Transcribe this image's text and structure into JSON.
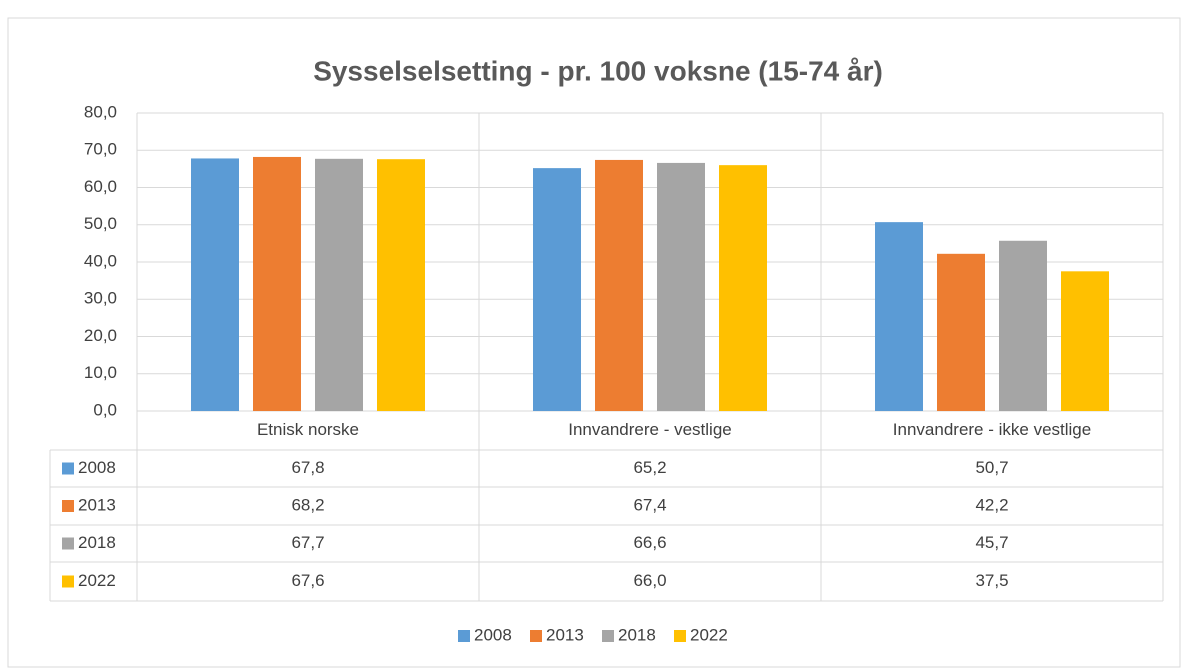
{
  "chart_data": {
    "type": "bar",
    "title": "Sysselselsetting - pr. 100 voksne (15-74 år)",
    "categories": [
      "Etnisk norske",
      "Innvandrere - vestlige",
      "Innvandrere - ikke vestlige"
    ],
    "series": [
      {
        "name": "2008",
        "color": "#5b9bd5",
        "values": [
          67.8,
          65.2,
          50.7
        ],
        "value_labels": [
          "67,8",
          "65,2",
          "50,7"
        ]
      },
      {
        "name": "2013",
        "color": "#ed7d31",
        "values": [
          68.2,
          67.4,
          42.2
        ],
        "value_labels": [
          "68,2",
          "67,4",
          "42,2"
        ]
      },
      {
        "name": "2018",
        "color": "#a5a5a5",
        "values": [
          67.7,
          66.6,
          45.7
        ],
        "value_labels": [
          "67,7",
          "66,6",
          "45,7"
        ]
      },
      {
        "name": "2022",
        "color": "#ffc000",
        "values": [
          67.6,
          66.0,
          37.5
        ],
        "value_labels": [
          "67,6",
          "66,0",
          "37,5"
        ]
      }
    ],
    "ylim": [
      0,
      80
    ],
    "yticks": [
      {
        "value": 0,
        "label": "0,0"
      },
      {
        "value": 10,
        "label": "10,0"
      },
      {
        "value": 20,
        "label": "20,0"
      },
      {
        "value": 30,
        "label": "30,0"
      },
      {
        "value": 40,
        "label": "40,0"
      },
      {
        "value": 50,
        "label": "50,0"
      },
      {
        "value": 60,
        "label": "60,0"
      },
      {
        "value": 70,
        "label": "70,0"
      },
      {
        "value": 80,
        "label": "80,0"
      }
    ],
    "grid": true,
    "legend": "bottom"
  }
}
